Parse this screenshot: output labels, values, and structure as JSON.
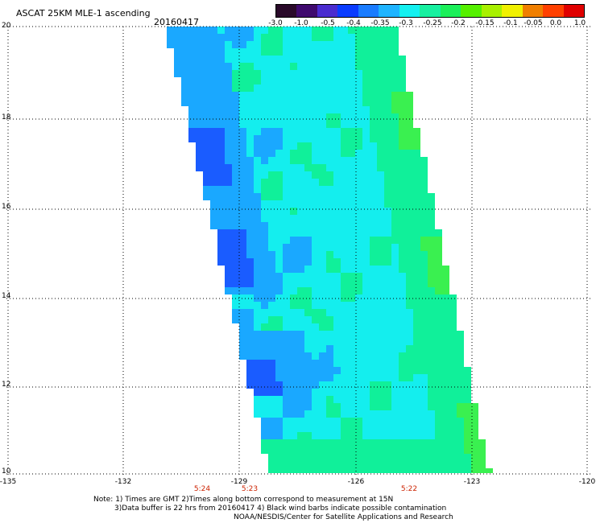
{
  "header": {
    "title": "ASCAT 25KM MLE-1 ascending",
    "date": "20160417"
  },
  "colorbar": {
    "labels": [
      "-3.0",
      "-1.0",
      "-0.5",
      "-0.4",
      "-0.35",
      "-0.3",
      "-0.25",
      "-0.2",
      "-0.15",
      "-0.1",
      "-0.05",
      "0.0",
      "1.0"
    ],
    "colors": [
      "#2a0a2a",
      "#3f0a6e",
      "#4a2ccf",
      "#0a3cff",
      "#1a7cff",
      "#1fb4ff",
      "#14f0f0",
      "#17f0a0",
      "#1bf05a",
      "#55f000",
      "#a8f000",
      "#f0f000",
      "#f07f00",
      "#ff4000",
      "#e00000"
    ]
  },
  "map": {
    "lat_labels": [
      "20",
      "18",
      "16",
      "14",
      "12",
      "10"
    ],
    "lon_labels": [
      "-135",
      "-132",
      "-129",
      "-126",
      "-123",
      "-120"
    ],
    "time_labels": [
      "5:24",
      "5:23",
      "5:22"
    ],
    "swath_colors": {
      "cyan": "#14eeee",
      "blue": "#1aa8ff",
      "deep_blue": "#1a5cff",
      "green": "#10f09a",
      "lime": "#3af050"
    }
  },
  "footer": {
    "note1": "Note: 1) Times are GMT 2)Times along bottom correspond to measurement at 15N",
    "note2": "3)Data buffer is 22 hrs from 20160417 4) Black wind barbs indicate possible contamination",
    "note3": "NOAA/NESDIS/Center for Satellite Applications and Research"
  }
}
